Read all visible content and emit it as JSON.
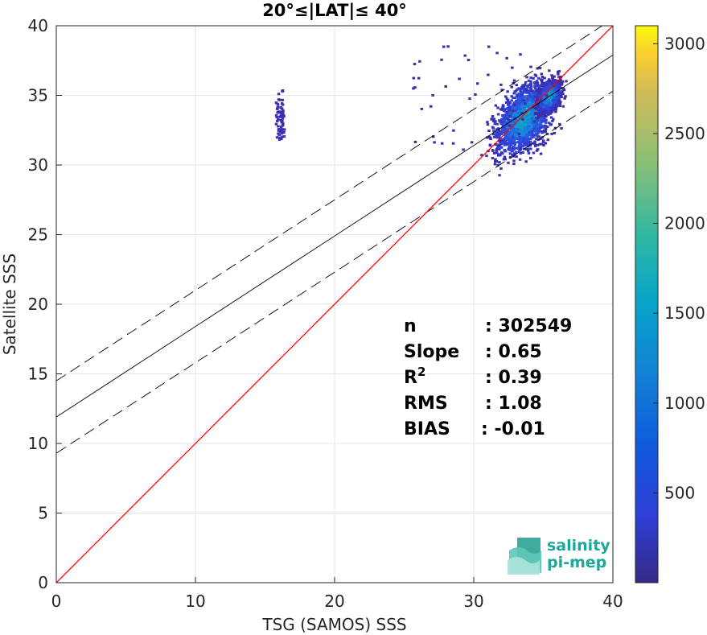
{
  "chart_data": {
    "type": "heatmap",
    "title": "20°≤|LAT|≤ 40°",
    "xlabel": "TSG (SAMOS) SSS",
    "ylabel": "Satellite SSS",
    "xlim": [
      0,
      40
    ],
    "ylim": [
      0,
      40
    ],
    "xticks": [
      "0",
      "10",
      "20",
      "30",
      "40"
    ],
    "yticks": [
      "0",
      "5",
      "10",
      "15",
      "20",
      "25",
      "30",
      "35",
      "40"
    ],
    "grid": true,
    "colorbar": {
      "range": [
        0,
        3100
      ],
      "ticks": [
        "500",
        "1000",
        "1500",
        "2000",
        "2500",
        "3000"
      ],
      "colormap": "parula"
    },
    "lines": {
      "identity": {
        "slope": 1,
        "intercept": 0,
        "color": "#ff0000"
      },
      "fit": {
        "slope": 0.65,
        "intercept": 11.9,
        "color": "#000000"
      },
      "fit_upper": {
        "slope": 0.65,
        "intercept": 14.5,
        "style": "dashed"
      },
      "fit_lower": {
        "slope": 0.65,
        "intercept": 9.3,
        "style": "dashed"
      }
    },
    "density_clusters": [
      {
        "x": 16,
        "y_min": 31.6,
        "y_max": 36.7,
        "density": "low"
      },
      {
        "x": 33.5,
        "y": 33.2,
        "x_spread": 2.0,
        "y_spread": 2.4,
        "density": "high"
      },
      {
        "x": 35.3,
        "y": 34.8,
        "x_spread": 0.8,
        "y_spread": 1.0,
        "density": "high"
      }
    ],
    "stats": [
      {
        "label": "n",
        "value": ": 302549"
      },
      {
        "label": "Slope",
        "value": ": 0.65"
      },
      {
        "label": "R",
        "sup": "2",
        "value": ": 0.39"
      },
      {
        "label": "RMS",
        "value": ": 1.08"
      },
      {
        "label": "BIAS",
        "value": ": -0.01"
      }
    ]
  },
  "logo": {
    "line1": "salinity",
    "line2": "pi-mep"
  }
}
